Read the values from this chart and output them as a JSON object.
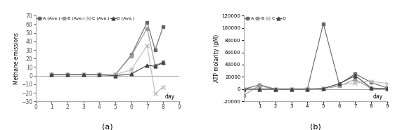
{
  "chart_a": {
    "xlabel": "day",
    "ylabel": "Methane emissions",
    "ylim": [
      -30,
      70
    ],
    "xlim": [
      0,
      9
    ],
    "xticks": [
      0,
      1,
      2,
      3,
      4,
      5,
      6,
      7,
      8,
      9
    ],
    "yticks": [
      -30,
      -20,
      -10,
      0,
      10,
      20,
      30,
      40,
      50,
      60,
      70
    ],
    "series": {
      "A (Ave.)": {
        "x": [
          1,
          2,
          3,
          4,
          5,
          6,
          7,
          7.5,
          8
        ],
        "y": [
          1,
          1,
          1,
          1,
          1,
          24,
          62,
          30,
          57
        ],
        "color": "#666666",
        "marker": "s",
        "markersize": 3.5
      },
      "B (Ave.)": {
        "x": [
          1,
          2,
          3,
          4,
          5,
          6,
          7,
          7.5,
          8
        ],
        "y": [
          1,
          1,
          1,
          1,
          1,
          23,
          55,
          12,
          16
        ],
        "color": "#999999",
        "marker": "s",
        "markersize": 3.5
      },
      "C (Ave.)": {
        "x": [
          1,
          2,
          3,
          4,
          5,
          6,
          7,
          7.5,
          8
        ],
        "y": [
          1,
          1,
          1,
          1,
          1,
          7,
          35,
          -21,
          -13
        ],
        "color": "#bbbbbb",
        "marker": "x",
        "markersize": 4.5
      },
      "D (Ave.)": {
        "x": [
          1,
          2,
          3,
          4,
          5,
          6,
          7,
          7.5,
          8
        ],
        "y": [
          1,
          1,
          1,
          1,
          0,
          2,
          12,
          11,
          15
        ],
        "color": "#444444",
        "marker": "^",
        "markersize": 3.5
      }
    },
    "label": "(a)"
  },
  "chart_b": {
    "xlabel": "day",
    "ylabel": "ATP molarity (pM)",
    "ylim": [
      -20000,
      120000
    ],
    "xlim": [
      0,
      9
    ],
    "xticks": [
      1,
      2,
      3,
      4,
      5,
      6,
      7,
      8,
      9
    ],
    "yticks": [
      -20000,
      0,
      20000,
      40000,
      60000,
      80000,
      100000,
      120000
    ],
    "series": {
      "A": {
        "x": [
          0,
          1,
          2,
          3,
          4,
          5,
          6,
          7,
          8,
          9
        ],
        "y": [
          0,
          7000,
          0,
          0,
          0,
          107000,
          8000,
          25000,
          11000,
          2000
        ],
        "color": "#666666",
        "marker": "s",
        "markersize": 3.5
      },
      "B": {
        "x": [
          0,
          1,
          2,
          3,
          4,
          5,
          6,
          7,
          8,
          9
        ],
        "y": [
          -10000,
          6000,
          -1000,
          -500,
          -500,
          1000,
          5000,
          16000,
          1000,
          1000
        ],
        "color": "#999999",
        "marker": "s",
        "markersize": 3.5
      },
      "C": {
        "x": [
          0,
          1,
          2,
          3,
          4,
          5,
          6,
          7,
          8,
          9
        ],
        "y": [
          0,
          0,
          0,
          0,
          0,
          500,
          7000,
          10000,
          13000,
          9000
        ],
        "color": "#bbbbbb",
        "marker": "x",
        "markersize": 4.5
      },
      "D": {
        "x": [
          0,
          1,
          2,
          3,
          4,
          5,
          6,
          7,
          8,
          9
        ],
        "y": [
          0,
          0,
          0,
          0,
          0,
          1000,
          9000,
          22000,
          2000,
          500
        ],
        "color": "#444444",
        "marker": "^",
        "markersize": 3.5
      }
    },
    "label": "(b)"
  }
}
